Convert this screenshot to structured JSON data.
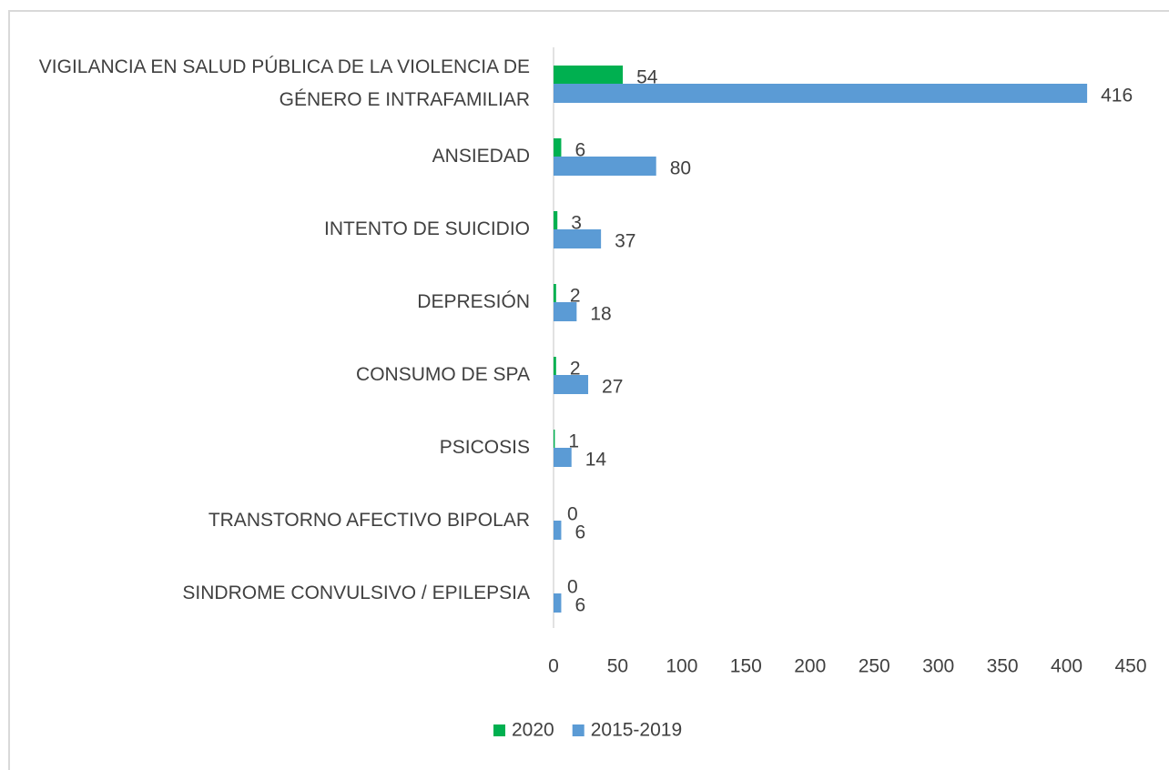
{
  "chart_data": {
    "type": "hbar",
    "categories": [
      "VIGILANCIA EN SALUD PÚBLICA DE LA VIOLENCIA DE GÉNERO E INTRAFAMILIAR",
      "ANSIEDAD",
      "INTENTO DE SUICIDIO",
      "DEPRESIÓN",
      "CONSUMO DE SPA",
      "PSICOSIS",
      "TRANSTORNO AFECTIVO BIPOLAR",
      "SINDROME CONVULSIVO / EPILEPSIA"
    ],
    "series": [
      {
        "name": "2020",
        "color": "#00b050",
        "values": [
          54,
          6,
          3,
          2,
          2,
          1,
          0,
          0
        ]
      },
      {
        "name": "2015-2019",
        "color": "#5b9bd5",
        "values": [
          416,
          80,
          37,
          18,
          27,
          14,
          6,
          6
        ]
      }
    ],
    "xlim": [
      0,
      450
    ],
    "xticks": [
      0,
      50,
      100,
      150,
      200,
      250,
      300,
      350,
      400,
      450
    ],
    "legend": "bottom",
    "grid": false
  }
}
